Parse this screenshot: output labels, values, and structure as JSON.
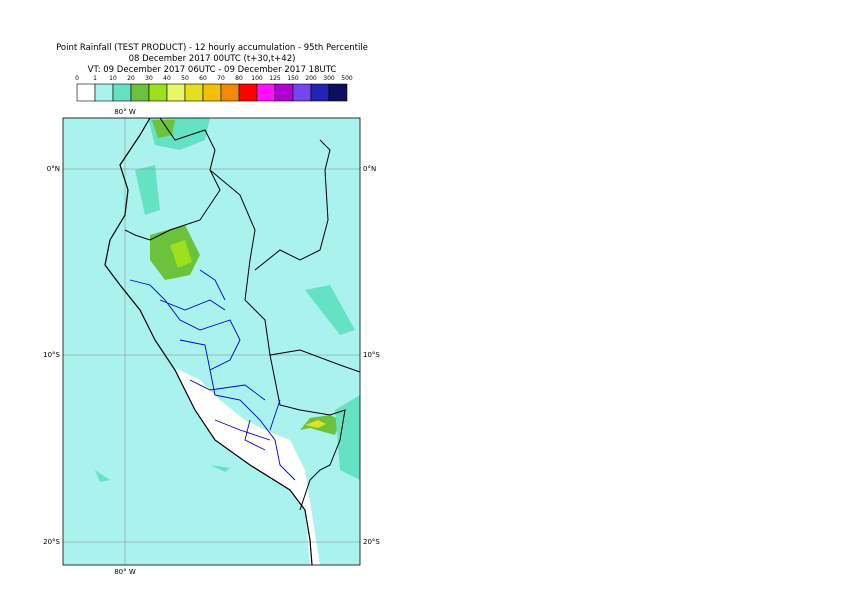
{
  "header": {
    "title": "Point Rainfall (TEST PRODUCT) - 12 hourly accumulation - 95th Percentile",
    "base_time": "08 December 2017 00UTC (t+30,t+42)",
    "valid_time": "VT: 09 December 2017 06UTC - 09 December 2017 18UTC"
  },
  "legend": {
    "labels": [
      "0",
      "1",
      "10",
      "20",
      "30",
      "40",
      "50",
      "60",
      "70",
      "80",
      "100",
      "125",
      "150",
      "200",
      "300",
      "500"
    ],
    "colors": [
      "#ffffff",
      "#aaf2ee",
      "#64e2c2",
      "#6cc23a",
      "#9ee01e",
      "#e6f868",
      "#e2e020",
      "#f2c000",
      "#f28a00",
      "#ff0000",
      "#ff10ff",
      "#b000d4",
      "#7046f0",
      "#2424b2",
      "#0e0e5e"
    ]
  },
  "axes": {
    "lon_top": "80° W",
    "lon_bottom": "80° W",
    "lat_labels": [
      "0°N",
      "10°S",
      "20°S"
    ]
  }
}
